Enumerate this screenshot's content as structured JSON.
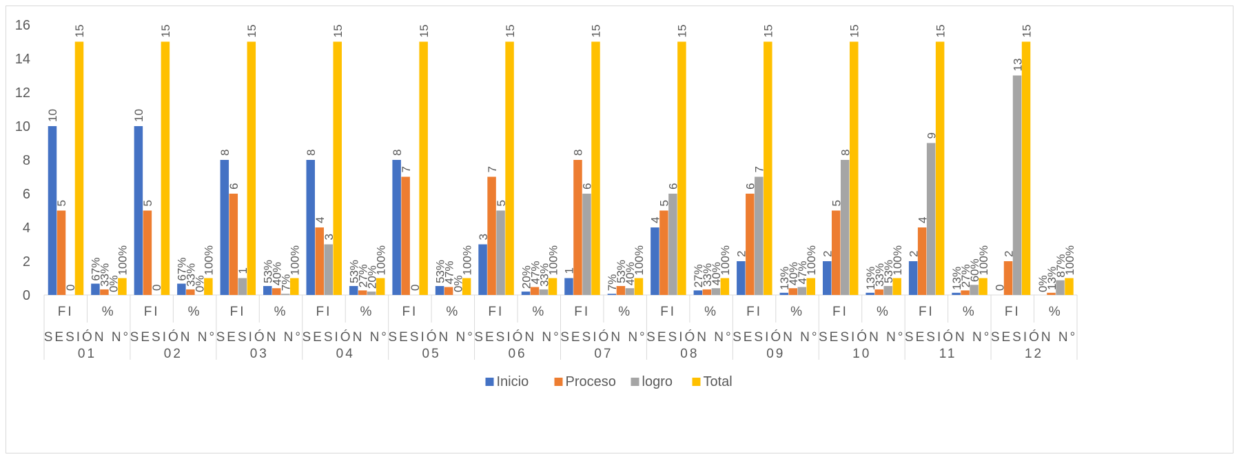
{
  "chart_data": {
    "type": "bar",
    "title": "",
    "xlabel": "",
    "ylabel": "",
    "ylim": [
      0,
      16
    ],
    "yticks": [
      0,
      2,
      4,
      6,
      8,
      10,
      12,
      14,
      16
    ],
    "grid": false,
    "legend_position": "bottom",
    "colors": {
      "Inicio": "#4472C4",
      "Proceso": "#ED7D31",
      "logro": "#A5A5A5",
      "Total": "#FFC000"
    },
    "groups": [
      {
        "label": "SESIÓN N° 01",
        "fi": [
          10,
          5,
          0,
          15
        ],
        "pct": [
          0.67,
          0.33,
          0.0,
          1.0
        ],
        "pct_labels": [
          "67%",
          "33%",
          "0%",
          "100%"
        ]
      },
      {
        "label": "SESIÓN N° 02",
        "fi": [
          10,
          5,
          0,
          15
        ],
        "pct": [
          0.67,
          0.33,
          0.0,
          1.0
        ],
        "pct_labels": [
          "67%",
          "33%",
          "0%",
          "100%"
        ]
      },
      {
        "label": "SESIÓN N° 03",
        "fi": [
          8,
          6,
          1,
          15
        ],
        "pct": [
          0.53,
          0.4,
          0.07,
          1.0
        ],
        "pct_labels": [
          "53%",
          "40%",
          "7%",
          "100%"
        ]
      },
      {
        "label": "SESIÓN N° 04",
        "fi": [
          8,
          4,
          3,
          15
        ],
        "pct": [
          0.53,
          0.27,
          0.2,
          1.0
        ],
        "pct_labels": [
          "53%",
          "27%",
          "20%",
          "100%"
        ]
      },
      {
        "label": "SESIÓN N° 05",
        "fi": [
          8,
          7,
          0,
          15
        ],
        "pct": [
          0.53,
          0.47,
          0.0,
          1.0
        ],
        "pct_labels": [
          "53%",
          "47%",
          "0%",
          "100%"
        ]
      },
      {
        "label": "SESIÓN N° 06",
        "fi": [
          3,
          7,
          5,
          15
        ],
        "pct": [
          0.2,
          0.47,
          0.33,
          1.0
        ],
        "pct_labels": [
          "20%",
          "47%",
          "33%",
          "100%"
        ]
      },
      {
        "label": "SESIÓN N° 07",
        "fi": [
          1,
          8,
          6,
          15
        ],
        "pct": [
          0.07,
          0.53,
          0.4,
          1.0
        ],
        "pct_labels": [
          "7%",
          "53%",
          "40%",
          "100%"
        ]
      },
      {
        "label": "SESIÓN N° 08",
        "fi": [
          4,
          5,
          6,
          15
        ],
        "pct": [
          0.27,
          0.33,
          0.4,
          1.0
        ],
        "pct_labels": [
          "27%",
          "33%",
          "40%",
          "100%"
        ]
      },
      {
        "label": "SESIÓN N° 09",
        "fi": [
          2,
          6,
          7,
          15
        ],
        "pct": [
          0.13,
          0.4,
          0.47,
          1.0
        ],
        "pct_labels": [
          "13%",
          "40%",
          "47%",
          "100%"
        ]
      },
      {
        "label": "SESIÓN N° 10",
        "fi": [
          2,
          5,
          8,
          15
        ],
        "pct": [
          0.13,
          0.33,
          0.53,
          1.0
        ],
        "pct_labels": [
          "13%",
          "33%",
          "53%",
          "100%"
        ]
      },
      {
        "label": "SESIÓN N° 11",
        "fi": [
          2,
          4,
          9,
          15
        ],
        "pct": [
          0.13,
          0.27,
          0.6,
          1.0
        ],
        "pct_labels": [
          "13%",
          "27%",
          "60%",
          "100%"
        ]
      },
      {
        "label": "SESIÓN N° 12",
        "fi": [
          0,
          2,
          13,
          15
        ],
        "pct": [
          0.0,
          0.13,
          0.87,
          1.0
        ],
        "pct_labels": [
          "0%",
          "13%",
          "87%",
          "100%"
        ]
      }
    ],
    "subcategories": [
      "FI",
      "%"
    ],
    "series": [
      {
        "name": "Inicio"
      },
      {
        "name": "Proceso"
      },
      {
        "name": "logro"
      },
      {
        "name": "Total"
      }
    ]
  }
}
